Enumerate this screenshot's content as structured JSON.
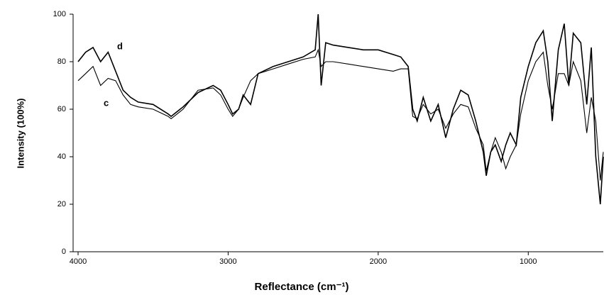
{
  "chart_data": {
    "type": "line",
    "x_label": "Reflectance (cm⁻¹)",
    "y_label": "Intensity (100%)",
    "x": [
      4000,
      3950,
      3900,
      3850,
      3800,
      3750,
      3700,
      3650,
      3600,
      3500,
      3400,
      3380,
      3300,
      3200,
      3100,
      3050,
      3000,
      2970,
      2930,
      2900,
      2850,
      2800,
      2700,
      2600,
      2500,
      2420,
      2400,
      2380,
      2350,
      2300,
      2200,
      2100,
      2000,
      1900,
      1850,
      1800,
      1770,
      1740,
      1700,
      1650,
      1600,
      1550,
      1500,
      1450,
      1400,
      1350,
      1300,
      1280,
      1250,
      1220,
      1180,
      1150,
      1120,
      1080,
      1050,
      1000,
      950,
      900,
      870,
      840,
      800,
      760,
      730,
      700,
      650,
      610,
      580,
      550,
      520,
      500
    ],
    "series": [
      {
        "name": "d",
        "color": "#000000",
        "values": [
          80,
          84,
          86,
          80,
          84,
          76,
          68,
          65,
          63,
          62,
          58,
          57,
          61,
          67,
          70,
          68,
          62,
          58,
          60,
          66,
          62,
          75,
          78,
          80,
          82,
          85,
          100,
          70,
          88,
          87,
          86,
          85,
          85,
          83,
          82,
          78,
          60,
          55,
          65,
          55,
          62,
          48,
          60,
          68,
          66,
          55,
          42,
          32,
          42,
          45,
          38,
          45,
          50,
          45,
          65,
          78,
          88,
          93,
          80,
          55,
          85,
          96,
          70,
          92,
          88,
          62,
          86,
          40,
          20,
          40
        ]
      },
      {
        "name": "c",
        "color": "#000000",
        "values": [
          72,
          75,
          78,
          70,
          73,
          72,
          66,
          62,
          61,
          60,
          57,
          56,
          60,
          68,
          69,
          66,
          60,
          57,
          60,
          65,
          72,
          75,
          77,
          79,
          81,
          82,
          85,
          78,
          80,
          80,
          79,
          78,
          77,
          76,
          77,
          77,
          57,
          56,
          62,
          58,
          60,
          52,
          58,
          62,
          61,
          52,
          45,
          34,
          42,
          48,
          42,
          35,
          40,
          45,
          58,
          72,
          80,
          84,
          70,
          60,
          75,
          75,
          70,
          80,
          72,
          50,
          65,
          55,
          30,
          42
        ]
      }
    ],
    "xlim": [
      4000,
      500
    ],
    "xticks": [
      4000,
      3000,
      2000,
      1000
    ],
    "ylim": [
      0,
      100
    ],
    "yticks": [
      0,
      20,
      40,
      60,
      80,
      100
    ]
  }
}
